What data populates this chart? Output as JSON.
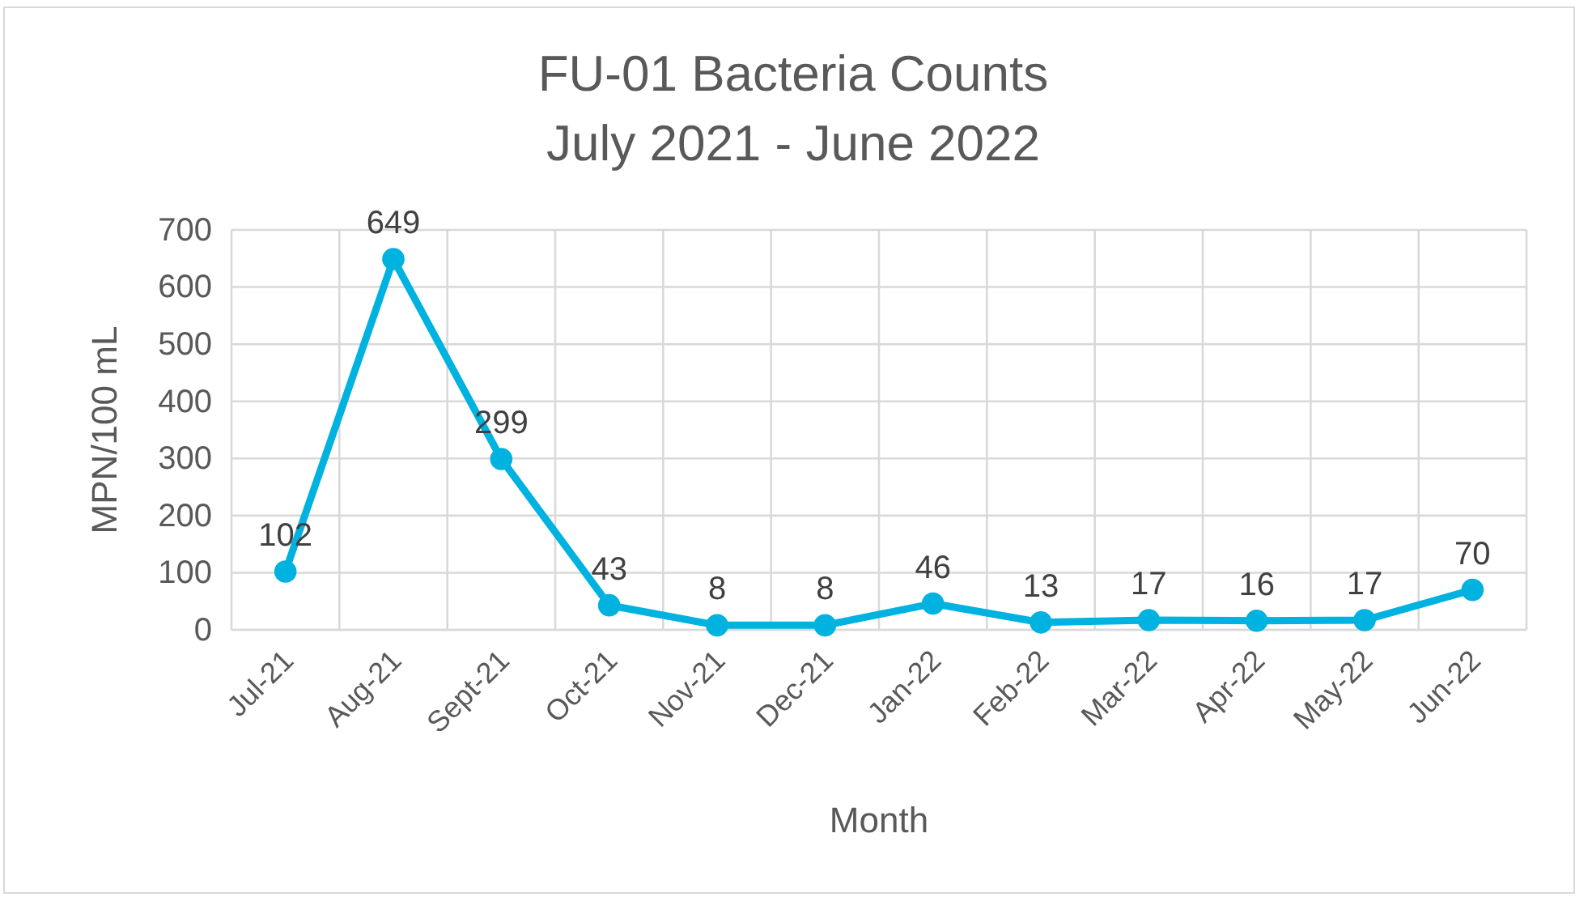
{
  "chart_data": {
    "type": "line",
    "title": "FU-01 Bacteria Counts\nJuly 2021 - June 2022",
    "xlabel": "Month",
    "ylabel": "MPN/100 mL",
    "categories": [
      "Jul-21",
      "Aug-21",
      "Sept-21",
      "Oct-21",
      "Nov-21",
      "Dec-21",
      "Jan-22",
      "Feb-22",
      "Mar-22",
      "Apr-22",
      "May-22",
      "Jun-22"
    ],
    "series": [
      {
        "color": "#00b2e0",
        "values": [
          102,
          649,
          299,
          43,
          8,
          8,
          46,
          13,
          17,
          16,
          17,
          70
        ]
      }
    ],
    "ylim": [
      0,
      700
    ],
    "yticks": [
      0,
      100,
      200,
      300,
      400,
      500,
      600,
      700
    ],
    "grid": true,
    "data_labels": true,
    "marker": "circle",
    "line_style": "solid"
  }
}
